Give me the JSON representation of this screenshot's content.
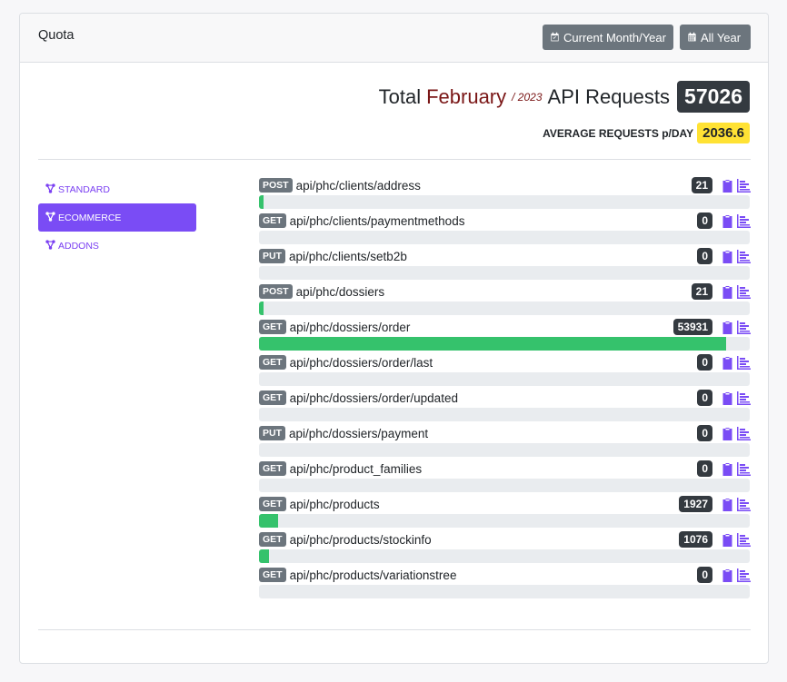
{
  "header": {
    "title": "Quota",
    "btn_month": "Current Month/Year",
    "btn_year": "All Year"
  },
  "summary": {
    "prefix": "Total",
    "month": "February",
    "year": "/ 2023",
    "suffix": "API Requests",
    "total": "57026",
    "avg_label": "AVERAGE REQUESTS p/DAY",
    "avg_value": "2036.6"
  },
  "nav": [
    {
      "label": "STANDARD",
      "active": false
    },
    {
      "label": "ECOMMERCE",
      "active": true
    },
    {
      "label": "ADDONS",
      "active": false
    }
  ],
  "endpoints": [
    {
      "method": "POST",
      "path": "api/phc/clients/address",
      "count": "21",
      "fraction": 0.009
    },
    {
      "method": "GET",
      "path": "api/phc/clients/paymentmethods",
      "count": "0",
      "fraction": 0
    },
    {
      "method": "PUT",
      "path": "api/phc/clients/setb2b",
      "count": "0",
      "fraction": 0
    },
    {
      "method": "POST",
      "path": "api/phc/dossiers",
      "count": "21",
      "fraction": 0.009
    },
    {
      "method": "GET",
      "path": "api/phc/dossiers/order",
      "count": "53931",
      "fraction": 0.952
    },
    {
      "method": "GET",
      "path": "api/phc/dossiers/order/last",
      "count": "0",
      "fraction": 0
    },
    {
      "method": "GET",
      "path": "api/phc/dossiers/order/updated",
      "count": "0",
      "fraction": 0
    },
    {
      "method": "PUT",
      "path": "api/phc/dossiers/payment",
      "count": "0",
      "fraction": 0
    },
    {
      "method": "GET",
      "path": "api/phc/product_families",
      "count": "0",
      "fraction": 0
    },
    {
      "method": "GET",
      "path": "api/phc/products",
      "count": "1927",
      "fraction": 0.039
    },
    {
      "method": "GET",
      "path": "api/phc/products/stockinfo",
      "count": "1076",
      "fraction": 0.02
    },
    {
      "method": "GET",
      "path": "api/phc/products/variationstree",
      "count": "0",
      "fraction": 0
    }
  ]
}
